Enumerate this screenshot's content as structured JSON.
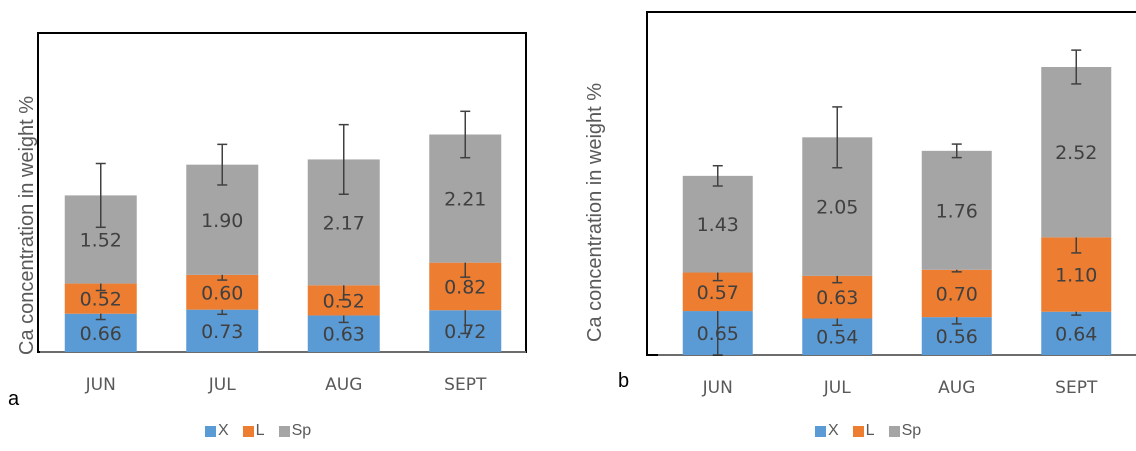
{
  "chart_data": [
    {
      "type": "bar",
      "stacked": true,
      "panel_label": "a",
      "ylabel": "Ca concentration in weight %",
      "categories": [
        "JUN",
        "JUL",
        "AUG",
        "SEPT"
      ],
      "series": [
        {
          "name": "X",
          "color": "#5b9bd5",
          "values": [
            0.66,
            0.73,
            0.63,
            0.72
          ],
          "labels": [
            "0.66",
            "0.73",
            "0.63",
            "0.72"
          ],
          "errors": [
            0.1,
            0.08,
            0.12,
            0.4
          ]
        },
        {
          "name": "L",
          "color": "#ed7d31",
          "values": [
            0.52,
            0.6,
            0.52,
            0.82
          ],
          "labels": [
            "0.52",
            "0.60",
            "0.52",
            "0.82"
          ],
          "errors": [
            0.12,
            0.09,
            0.25,
            0.25
          ]
        },
        {
          "name": "Sp",
          "color": "#a5a5a5",
          "values": [
            1.52,
            1.9,
            2.17,
            2.21
          ],
          "labels": [
            "1.52",
            "1.90",
            "2.17",
            "2.21"
          ],
          "errors": [
            0.55,
            0.35,
            0.6,
            0.4
          ]
        }
      ],
      "ylim": [
        0,
        5.5
      ],
      "legend_position": "bottom"
    },
    {
      "type": "bar",
      "stacked": true,
      "panel_label": "b",
      "ylabel": "Ca concentration in weight %",
      "categories": [
        "JUN",
        "JUL",
        "AUG",
        "SEPT"
      ],
      "series": [
        {
          "name": "X",
          "color": "#5b9bd5",
          "values": [
            0.65,
            0.54,
            0.56,
            0.64
          ],
          "labels": [
            "0.65",
            "0.54",
            "0.56",
            "0.64"
          ],
          "errors": [
            0.75,
            0.1,
            0.1,
            0.05
          ]
        },
        {
          "name": "L",
          "color": "#ed7d31",
          "values": [
            0.57,
            0.63,
            0.7,
            1.1
          ],
          "labels": [
            "0.57",
            "0.63",
            "0.70",
            "1.10"
          ],
          "errors": [
            0.12,
            0.1,
            0.03,
            0.23
          ]
        },
        {
          "name": "Sp",
          "color": "#a5a5a5",
          "values": [
            1.43,
            2.05,
            1.76,
            2.52
          ],
          "labels": [
            "1.43",
            "2.05",
            "1.76",
            "2.52"
          ],
          "errors": [
            0.15,
            0.45,
            0.1,
            0.25
          ]
        }
      ],
      "ylim": [
        0,
        5.0
      ],
      "legend_position": "bottom"
    }
  ]
}
